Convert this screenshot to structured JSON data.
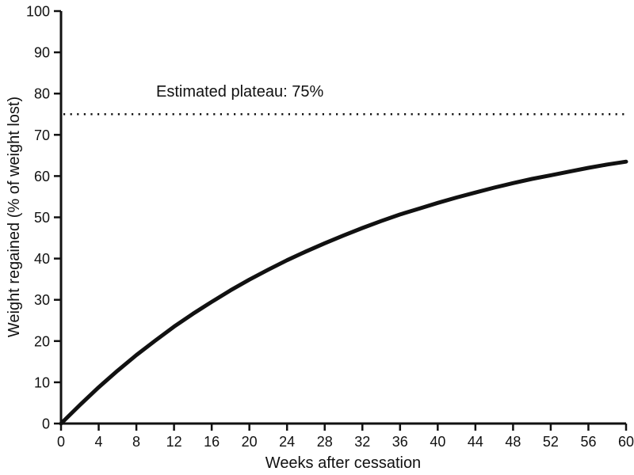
{
  "page": {
    "background": "#ffffff",
    "ink_color": "#111111"
  },
  "chart_data": {
    "type": "line",
    "title": "",
    "xlabel": "Weeks after cessation",
    "ylabel": "Weight regained (% of weight lost)",
    "xlim": [
      0,
      60
    ],
    "ylim": [
      0,
      100
    ],
    "x_ticks": [
      0,
      4,
      8,
      12,
      16,
      20,
      24,
      28,
      32,
      36,
      40,
      44,
      48,
      52,
      56,
      60
    ],
    "y_ticks": [
      0,
      10,
      20,
      30,
      40,
      50,
      60,
      70,
      80,
      90,
      100
    ],
    "grid": false,
    "legend": false,
    "series": [
      {
        "name": "Weight regained curve",
        "style": "solid",
        "color": "#111111",
        "width": 5,
        "x": [
          0,
          2,
          4,
          6,
          8,
          10,
          12,
          14,
          16,
          18,
          20,
          22,
          24,
          26,
          28,
          30,
          32,
          34,
          36,
          38,
          40,
          42,
          44,
          46,
          48,
          50,
          52,
          54,
          56,
          58,
          60
        ],
        "y": [
          0,
          4.5,
          8.8,
          12.8,
          16.6,
          20.1,
          23.5,
          26.6,
          29.5,
          32.3,
          34.9,
          37.3,
          39.6,
          41.7,
          43.7,
          45.6,
          47.4,
          49.1,
          50.7,
          52.1,
          53.5,
          54.8,
          56.0,
          57.2,
          58.3,
          59.3,
          60.2,
          61.1,
          62.0,
          62.8,
          63.5
        ]
      },
      {
        "name": "Estimated plateau reference line",
        "style": "dotted",
        "color": "#111111",
        "width": 2.5,
        "y_const": 75
      }
    ],
    "annotations": [
      {
        "text": "Estimated plateau: 75%",
        "y_value": 75
      }
    ]
  }
}
